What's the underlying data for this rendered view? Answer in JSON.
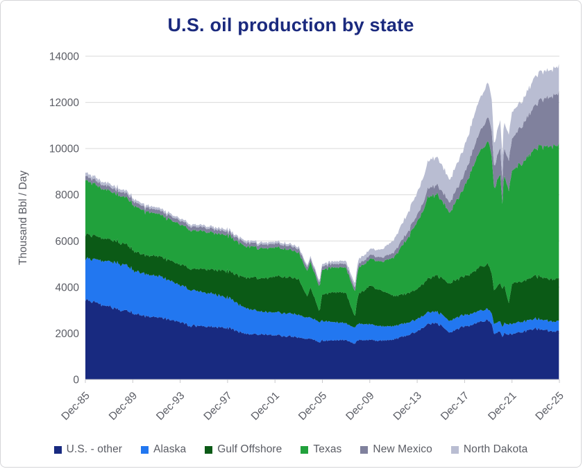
{
  "title": "U.S. oil production by state",
  "colors": {
    "title_text": "#1b2a7e",
    "axis_text": "#5a5c64",
    "grid": "#d9d9d9",
    "axis_line": "#c9c9cc",
    "card_border": "#d5d5d8",
    "background": "#ffffff"
  },
  "chart_data": {
    "type": "area",
    "stacked": true,
    "title": "U.S. oil production by state",
    "xlabel": "",
    "ylabel": "Thousand Bbl / Day",
    "ylim": [
      0,
      14000
    ],
    "yticks": [
      0,
      2000,
      4000,
      6000,
      8000,
      10000,
      12000,
      14000
    ],
    "xtick_labels": [
      "Dec-85",
      "Dec-89",
      "Dec-93",
      "Dec-97",
      "Dec-01",
      "Dec-05",
      "Dec-09",
      "Dec-13",
      "Dec-17",
      "Dec-21",
      "Dec-25"
    ],
    "xtick_positions_years_after_dec85": [
      0,
      4,
      8,
      12,
      16,
      20,
      24,
      28,
      32,
      36,
      40
    ],
    "x_unit": "years after Dec-1985 (monthly series, Dec-85 to Dec-25)",
    "grid": "horizontal",
    "legend_position": "bottom",
    "x": [
      0,
      1,
      2,
      3,
      4,
      5,
      6,
      7,
      8,
      9,
      10,
      11,
      12,
      13,
      14,
      15,
      16,
      17,
      18,
      18.75,
      19,
      19.75,
      20,
      21,
      22,
      22.75,
      23,
      24,
      25,
      26,
      27,
      28,
      29,
      29.5,
      30,
      30.75,
      31,
      32,
      33,
      34,
      34.35,
      34.45,
      35,
      35.2,
      35.3,
      35.75,
      36,
      37,
      38,
      39,
      40
    ],
    "series": [
      {
        "name": "U.S. - other",
        "color": "#182a80",
        "values": [
          3450,
          3300,
          3150,
          3000,
          2900,
          2750,
          2700,
          2600,
          2480,
          2320,
          2300,
          2260,
          2230,
          2060,
          1950,
          1950,
          1910,
          1870,
          1830,
          1780,
          1780,
          1620,
          1700,
          1690,
          1690,
          1560,
          1700,
          1700,
          1680,
          1720,
          1900,
          2100,
          2400,
          2450,
          2330,
          2020,
          2080,
          2300,
          2450,
          2550,
          2350,
          2000,
          2050,
          1800,
          2000,
          1950,
          1950,
          2080,
          2200,
          2120,
          2120
        ]
      },
      {
        "name": "Alaska",
        "color": "#2277f0",
        "values": [
          1780,
          1870,
          1950,
          2020,
          1890,
          1800,
          1810,
          1710,
          1610,
          1540,
          1480,
          1400,
          1320,
          1190,
          1070,
          980,
          990,
          1000,
          980,
          930,
          910,
          870,
          860,
          790,
          720,
          690,
          710,
          680,
          620,
          580,
          550,
          530,
          510,
          500,
          500,
          505,
          510,
          500,
          490,
          480,
          465,
          440,
          450,
          440,
          445,
          440,
          445,
          440,
          430,
          425,
          430
        ]
      },
      {
        "name": "Gulf Offshore",
        "color": "#0b5a16",
        "values": [
          1050,
          1000,
          950,
          920,
          860,
          800,
          860,
          870,
          890,
          920,
          1000,
          1070,
          1150,
          1230,
          1380,
          1450,
          1560,
          1560,
          1540,
          900,
          1300,
          450,
          1150,
          1300,
          1320,
          450,
          1250,
          1650,
          1550,
          1300,
          1270,
          1300,
          1450,
          1550,
          1600,
          1600,
          1650,
          1650,
          1850,
          1950,
          1700,
          1450,
          1650,
          1650,
          1700,
          900,
          1750,
          1740,
          1870,
          1800,
          1850
        ]
      },
      {
        "name": "Texas",
        "color": "#21a13c",
        "values": [
          2380,
          2200,
          2100,
          2050,
          1980,
          1890,
          1850,
          1780,
          1730,
          1670,
          1620,
          1590,
          1570,
          1400,
          1330,
          1290,
          1250,
          1200,
          1150,
          1110,
          1100,
          1060,
          1080,
          1080,
          1090,
          1050,
          1130,
          1150,
          1260,
          1650,
          2250,
          2900,
          3550,
          3500,
          3400,
          3100,
          3200,
          3900,
          4850,
          5350,
          5000,
          4400,
          4650,
          3700,
          4800,
          4900,
          4950,
          5150,
          5550,
          5700,
          5850
        ]
      },
      {
        "name": "New Mexico",
        "color": "#80819d",
        "values": [
          185,
          180,
          180,
          180,
          178,
          175,
          172,
          170,
          168,
          167,
          167,
          165,
          163,
          160,
          160,
          165,
          165,
          163,
          160,
          158,
          158,
          155,
          155,
          155,
          158,
          158,
          160,
          168,
          185,
          210,
          260,
          300,
          380,
          400,
          410,
          440,
          460,
          560,
          780,
          1060,
          1080,
          950,
          1150,
          1000,
          1160,
          1300,
          1400,
          1650,
          1900,
          2100,
          2250
        ]
      },
      {
        "name": "North Dakota",
        "color": "#b9bdd2",
        "values": [
          145,
          135,
          125,
          115,
          108,
          100,
          98,
          95,
          92,
          90,
          90,
          88,
          87,
          86,
          88,
          88,
          87,
          86,
          85,
          88,
          90,
          95,
          98,
          105,
          135,
          190,
          205,
          245,
          345,
          535,
          770,
          960,
          1190,
          1200,
          1150,
          980,
          1000,
          1180,
          1400,
          1480,
          1350,
          950,
          1190,
          1100,
          1110,
          1120,
          1150,
          1060,
          1250,
          1180,
          1150
        ]
      }
    ]
  }
}
